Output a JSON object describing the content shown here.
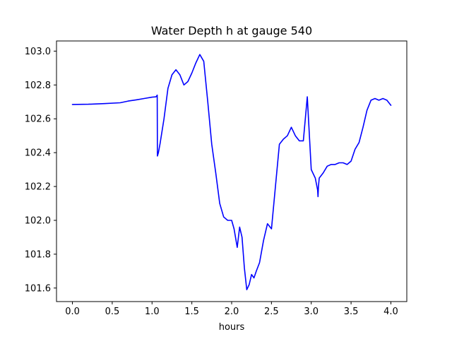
{
  "chart_data": {
    "type": "line",
    "title": "Water Depth h at gauge 540",
    "xlabel": "hours",
    "ylabel": "",
    "xlim": [
      -0.2,
      4.2
    ],
    "ylim": [
      101.52,
      103.06
    ],
    "xticks": [
      0.0,
      0.5,
      1.0,
      1.5,
      2.0,
      2.5,
      3.0,
      3.5,
      4.0
    ],
    "xtick_labels": [
      "0.0",
      "0.5",
      "1.0",
      "1.5",
      "2.0",
      "2.5",
      "3.0",
      "3.5",
      "4.0"
    ],
    "yticks": [
      101.6,
      101.8,
      102.0,
      102.2,
      102.4,
      102.6,
      102.8,
      103.0
    ],
    "ytick_labels": [
      "101.6",
      "101.8",
      "102.0",
      "102.2",
      "102.4",
      "102.6",
      "102.8",
      "103.0"
    ],
    "grid": false,
    "series": [
      {
        "color": "#0000ff",
        "x": [
          0.0,
          0.2,
          0.4,
          0.6,
          0.7,
          0.8,
          0.9,
          1.0,
          1.05,
          1.065,
          1.068,
          1.08,
          1.1,
          1.15,
          1.2,
          1.25,
          1.3,
          1.35,
          1.4,
          1.45,
          1.5,
          1.55,
          1.6,
          1.65,
          1.7,
          1.75,
          1.8,
          1.85,
          1.9,
          1.95,
          2.0,
          2.03,
          2.07,
          2.1,
          2.13,
          2.16,
          2.19,
          2.22,
          2.25,
          2.28,
          2.31,
          2.35,
          2.4,
          2.45,
          2.5,
          2.55,
          2.6,
          2.65,
          2.7,
          2.75,
          2.8,
          2.85,
          2.9,
          2.95,
          3.0,
          3.05,
          3.08,
          3.085,
          3.09,
          3.1,
          3.15,
          3.2,
          3.25,
          3.3,
          3.35,
          3.4,
          3.45,
          3.5,
          3.55,
          3.6,
          3.65,
          3.7,
          3.75,
          3.8,
          3.85,
          3.9,
          3.95,
          4.0
        ],
        "y": [
          102.685,
          102.686,
          102.69,
          102.695,
          102.705,
          102.712,
          102.72,
          102.728,
          102.73,
          102.74,
          102.38,
          102.4,
          102.45,
          102.6,
          102.78,
          102.86,
          102.89,
          102.86,
          102.8,
          102.82,
          102.87,
          102.93,
          102.98,
          102.94,
          102.7,
          102.45,
          102.28,
          102.1,
          102.02,
          102.0,
          102.0,
          101.95,
          101.84,
          101.96,
          101.9,
          101.72,
          101.59,
          101.62,
          101.68,
          101.66,
          101.7,
          101.75,
          101.88,
          101.98,
          101.95,
          102.2,
          102.45,
          102.48,
          102.5,
          102.55,
          102.5,
          102.47,
          102.47,
          102.73,
          102.3,
          102.25,
          102.18,
          102.14,
          102.2,
          102.25,
          102.28,
          102.32,
          102.33,
          102.33,
          102.34,
          102.34,
          102.33,
          102.35,
          102.42,
          102.46,
          102.55,
          102.65,
          102.71,
          102.72,
          102.71,
          102.72,
          102.71,
          102.68
        ]
      }
    ]
  }
}
